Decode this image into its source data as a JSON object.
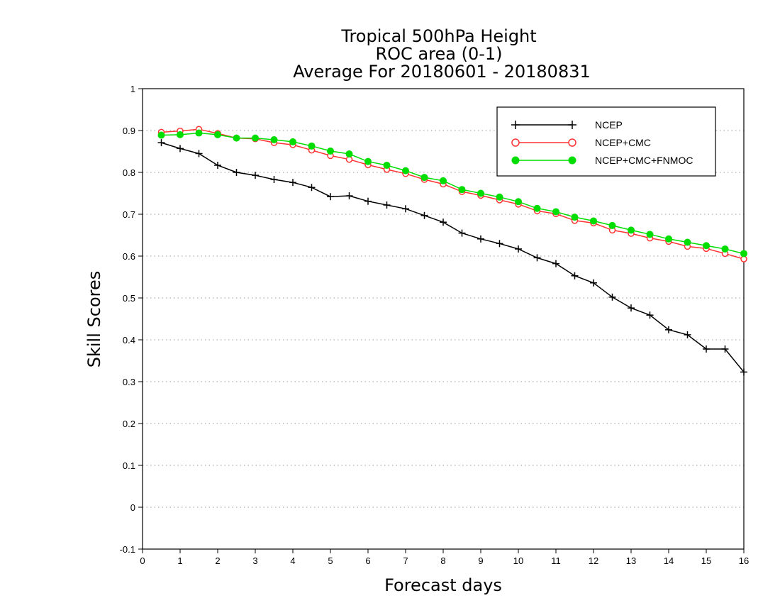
{
  "chart_data": {
    "type": "line",
    "title_lines": [
      "Tropical 500hPa Height",
      "ROC area (0-1)",
      "Average For 20180601 - 20180831"
    ],
    "xlabel": "Forecast days",
    "ylabel": "Skill Scores",
    "xlim": [
      0,
      16
    ],
    "ylim": [
      -0.1,
      1
    ],
    "x_ticks": [
      0,
      1,
      2,
      3,
      4,
      5,
      6,
      7,
      8,
      9,
      10,
      11,
      12,
      13,
      14,
      15,
      16
    ],
    "y_ticks": [
      -0.1,
      0,
      0.1,
      0.2,
      0.3,
      0.4,
      0.5,
      0.6,
      0.7,
      0.8,
      0.9,
      1
    ],
    "y_tick_labels": [
      "-0.1",
      "0",
      "0.1",
      "0.2",
      "0.3",
      "0.4",
      "0.5",
      "0.6",
      "0.7",
      "0.8",
      "0.9",
      "1"
    ],
    "grid": "horizontal dotted",
    "legend_position": "top-right",
    "x": [
      0.5,
      1,
      1.5,
      2,
      2.5,
      3,
      3.5,
      4,
      4.5,
      5,
      5.5,
      6,
      6.5,
      7,
      7.5,
      8,
      8.5,
      9,
      9.5,
      10,
      10.5,
      11,
      11.5,
      12,
      12.5,
      13,
      13.5,
      14,
      14.5,
      15,
      15.5,
      16
    ],
    "series": [
      {
        "name": "NCEP",
        "color": "#000000",
        "marker": "plus",
        "values": [
          0.871,
          0.857,
          0.845,
          0.817,
          0.8,
          0.793,
          0.783,
          0.776,
          0.764,
          0.742,
          0.744,
          0.731,
          0.722,
          0.713,
          0.697,
          0.681,
          0.655,
          0.641,
          0.63,
          0.617,
          0.596,
          0.582,
          0.553,
          0.536,
          0.502,
          0.476,
          0.459,
          0.424,
          0.412,
          0.378,
          0.378,
          0.323
        ]
      },
      {
        "name": "NCEP+CMC",
        "color": "#ff3333",
        "marker": "open-circle",
        "values": [
          0.896,
          0.899,
          0.903,
          0.893,
          0.882,
          0.88,
          0.871,
          0.866,
          0.853,
          0.84,
          0.831,
          0.818,
          0.807,
          0.797,
          0.783,
          0.772,
          0.754,
          0.745,
          0.734,
          0.724,
          0.708,
          0.701,
          0.685,
          0.679,
          0.662,
          0.654,
          0.643,
          0.635,
          0.623,
          0.618,
          0.606,
          0.593
        ]
      },
      {
        "name": "NCEP+CMC+FNMOC",
        "color": "#00dd00",
        "marker": "filled-circle",
        "values": [
          0.889,
          0.89,
          0.894,
          0.89,
          0.882,
          0.882,
          0.878,
          0.873,
          0.863,
          0.851,
          0.844,
          0.826,
          0.817,
          0.804,
          0.788,
          0.78,
          0.759,
          0.75,
          0.741,
          0.73,
          0.714,
          0.706,
          0.693,
          0.684,
          0.673,
          0.662,
          0.652,
          0.641,
          0.633,
          0.625,
          0.617,
          0.606
        ]
      }
    ]
  }
}
